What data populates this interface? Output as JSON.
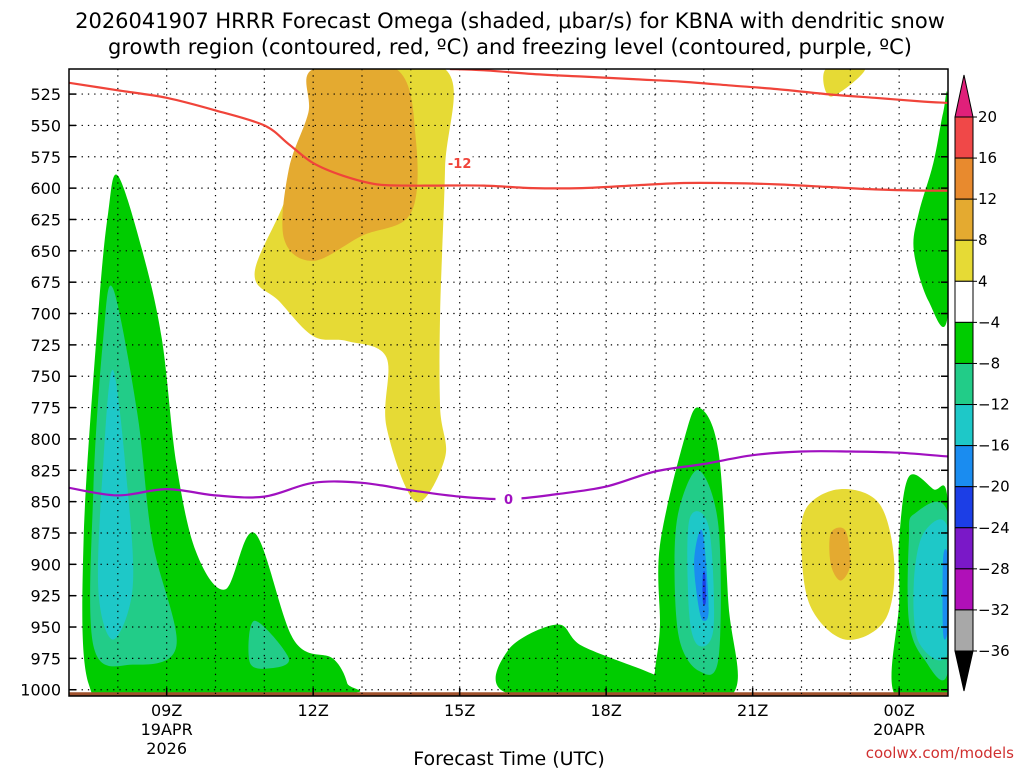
{
  "chart_data": {
    "type": "contour",
    "title_line1": "2026041907 HRRR Forecast Omega (shaded, μbar/s) for KBNA with dendritic snow",
    "title_line2": "growth region (contoured, red, ºC) and freezing level (contoured, purple, ºC)",
    "xlabel": "Forecast Time (UTC)",
    "ylabel": "",
    "credit": "coolwx.com/models",
    "x_range_hours": [
      7,
      25
    ],
    "y_range_hpa": [
      1005,
      505
    ],
    "y_ticks": [
      525,
      550,
      575,
      600,
      625,
      650,
      675,
      700,
      725,
      750,
      775,
      800,
      825,
      850,
      875,
      900,
      925,
      950,
      975,
      1000
    ],
    "x_ticks": [
      {
        "hour": 9,
        "label": "09Z",
        "sub": [
          "19APR",
          "2026"
        ]
      },
      {
        "hour": 12,
        "label": "12Z",
        "sub": []
      },
      {
        "hour": 15,
        "label": "15Z",
        "sub": []
      },
      {
        "hour": 18,
        "label": "18Z",
        "sub": []
      },
      {
        "hour": 21,
        "label": "21Z",
        "sub": []
      },
      {
        "hour": 24,
        "label": "00Z",
        "sub": [
          "20APR"
        ]
      }
    ],
    "grid": true,
    "colorbar": {
      "labels": [
        "20",
        "16",
        "12",
        "8",
        "4",
        "−4",
        "−8",
        "−12",
        "−16",
        "−20",
        "−24",
        "−28",
        "−32",
        "−36"
      ],
      "bands": [
        {
          "range": [
            16,
            20
          ],
          "color": "#f04848"
        },
        {
          "range": [
            12,
            16
          ],
          "color": "#e88a2e"
        },
        {
          "range": [
            8,
            12
          ],
          "color": "#e4aa30"
        },
        {
          "range": [
            4,
            8
          ],
          "color": "#e6da35"
        },
        {
          "range": [
            -4,
            4
          ],
          "color": "#ffffff"
        },
        {
          "range": [
            -8,
            -4
          ],
          "color": "#00cc00"
        },
        {
          "range": [
            -12,
            -8
          ],
          "color": "#22cc88"
        },
        {
          "range": [
            -16,
            -12
          ],
          "color": "#1ec8c8"
        },
        {
          "range": [
            -20,
            -16
          ],
          "color": "#1a8cf0"
        },
        {
          "range": [
            -24,
            -20
          ],
          "color": "#1c3ee6"
        },
        {
          "range": [
            -28,
            -24
          ],
          "color": "#7a18c8"
        },
        {
          "range": [
            -32,
            -28
          ],
          "color": "#b010b8"
        },
        {
          "range": [
            -36,
            -32
          ],
          "color": "#a8a8a8"
        }
      ],
      "top_arrow_color": "#e0207a",
      "bottom_arrow_color": "#000000"
    },
    "ground_color": "#a0522d",
    "omega_regions": [
      {
        "name": "sink-upper-yellow",
        "color": "#e6da35",
        "pts": [
          [
            10.8,
            668
          ],
          [
            11.4,
            612
          ],
          [
            11.9,
            555
          ],
          [
            12.3,
            505
          ],
          [
            14.7,
            505
          ],
          [
            14.7,
            585
          ],
          [
            14.6,
            700
          ],
          [
            14.6,
            775
          ],
          [
            14.7,
            815
          ],
          [
            14.1,
            850
          ],
          [
            13.5,
            790
          ],
          [
            13.5,
            735
          ],
          [
            12.7,
            722
          ],
          [
            12.0,
            718
          ],
          [
            11.3,
            690
          ]
        ]
      },
      {
        "name": "sink-upper-orange",
        "color": "#e4aa30",
        "pts": [
          [
            11.4,
            640
          ],
          [
            11.5,
            585
          ],
          [
            11.9,
            540
          ],
          [
            12.0,
            505
          ],
          [
            13.7,
            505
          ],
          [
            14.1,
            560
          ],
          [
            14.0,
            620
          ],
          [
            13.0,
            638
          ],
          [
            12.0,
            658
          ]
        ]
      },
      {
        "name": "sink-top-right-yellow",
        "color": "#e6da35",
        "pts": [
          [
            22.5,
            505
          ],
          [
            23.3,
            505
          ],
          [
            22.6,
            527
          ]
        ]
      },
      {
        "name": "sink-lower-yellow",
        "color": "#e6da35",
        "pts": [
          [
            22.1,
            855
          ],
          [
            22.8,
            840
          ],
          [
            23.6,
            852
          ],
          [
            23.9,
            900
          ],
          [
            23.7,
            945
          ],
          [
            22.9,
            960
          ],
          [
            22.2,
            935
          ],
          [
            22.0,
            890
          ]
        ]
      },
      {
        "name": "sink-lower-orange",
        "color": "#e4aa30",
        "pts": [
          [
            22.6,
            875
          ],
          [
            22.9,
            873
          ],
          [
            23.0,
            900
          ],
          [
            22.8,
            913
          ],
          [
            22.6,
            900
          ]
        ]
      },
      {
        "name": "rise-left-green",
        "color": "#00cc00",
        "pts": [
          [
            8.0,
            590
          ],
          [
            8.5,
            650
          ],
          [
            8.9,
            720
          ],
          [
            9.2,
            820
          ],
          [
            9.6,
            890
          ],
          [
            10.2,
            920
          ],
          [
            10.8,
            875
          ],
          [
            11.6,
            960
          ],
          [
            12.4,
            975
          ],
          [
            12.7,
            995
          ],
          [
            12.6,
            1003
          ],
          [
            8.3,
            1003
          ],
          [
            7.4,
            995
          ],
          [
            7.3,
            880
          ],
          [
            7.6,
            700
          ],
          [
            7.8,
            620
          ]
        ]
      },
      {
        "name": "rise-left-teal",
        "color": "#22cc88",
        "pts": [
          [
            7.9,
            680
          ],
          [
            8.4,
            780
          ],
          [
            8.7,
            880
          ],
          [
            9.2,
            965
          ],
          [
            8.3,
            980
          ],
          [
            7.5,
            965
          ],
          [
            7.5,
            840
          ],
          [
            7.7,
            720
          ]
        ]
      },
      {
        "name": "rise-left-cyan",
        "color": "#1ec8c8",
        "pts": [
          [
            7.9,
            745
          ],
          [
            8.2,
            840
          ],
          [
            8.3,
            920
          ],
          [
            7.9,
            960
          ],
          [
            7.6,
            920
          ],
          [
            7.7,
            820
          ]
        ]
      },
      {
        "name": "rise-left-small-teal",
        "color": "#22cc88",
        "pts": [
          [
            10.8,
            945
          ],
          [
            11.5,
            975
          ],
          [
            11.1,
            983
          ],
          [
            10.7,
            978
          ]
        ]
      },
      {
        "name": "rise-mid-green",
        "color": "#00cc00",
        "pts": [
          [
            16.0,
            968
          ],
          [
            17.0,
            948
          ],
          [
            17.5,
            965
          ],
          [
            18.8,
            985
          ],
          [
            19.0,
            990
          ],
          [
            19.0,
            1003
          ],
          [
            16.0,
            1003
          ]
        ]
      },
      {
        "name": "rise-mid2-green",
        "color": "#00cc00",
        "pts": [
          [
            19.1,
            885
          ],
          [
            19.6,
            800
          ],
          [
            19.9,
            775
          ],
          [
            20.3,
            810
          ],
          [
            20.5,
            930
          ],
          [
            20.6,
            1003
          ],
          [
            19.0,
            1003
          ],
          [
            19.0,
            985
          ],
          [
            19.1,
            950
          ]
        ]
      },
      {
        "name": "rise-mid2-teal",
        "color": "#22cc88",
        "pts": [
          [
            19.5,
            855
          ],
          [
            19.9,
            825
          ],
          [
            20.3,
            870
          ],
          [
            20.3,
            975
          ],
          [
            19.9,
            985
          ],
          [
            19.5,
            960
          ],
          [
            19.4,
            900
          ]
        ]
      },
      {
        "name": "rise-mid2-cyan",
        "color": "#1ec8c8",
        "pts": [
          [
            19.7,
            865
          ],
          [
            20.1,
            870
          ],
          [
            20.2,
            950
          ],
          [
            19.9,
            965
          ],
          [
            19.7,
            940
          ]
        ]
      },
      {
        "name": "rise-mid2-blue",
        "color": "#1a8cf0",
        "pts": [
          [
            19.9,
            875
          ],
          [
            20.0,
            880
          ],
          [
            20.1,
            935
          ],
          [
            20.0,
            945
          ],
          [
            19.9,
            935
          ],
          [
            19.8,
            900
          ]
        ]
      },
      {
        "name": "rise-mid2-deepblue",
        "color": "#1c3ee6",
        "pts": [
          [
            19.98,
            908
          ],
          [
            20.03,
            908
          ],
          [
            20.04,
            930
          ],
          [
            19.98,
            930
          ]
        ]
      },
      {
        "name": "rise-right-green",
        "color": "#00cc00",
        "pts": [
          [
            24.2,
            830
          ],
          [
            24.7,
            840
          ],
          [
            25.0,
            852
          ],
          [
            25.0,
            1003
          ],
          [
            23.9,
            1003
          ],
          [
            24.0,
            930
          ],
          [
            24.0,
            880
          ]
        ]
      },
      {
        "name": "rise-right-teal",
        "color": "#22cc88",
        "pts": [
          [
            24.3,
            860
          ],
          [
            25.0,
            860
          ],
          [
            25.0,
            985
          ],
          [
            24.5,
            975
          ],
          [
            24.2,
            945
          ],
          [
            24.2,
            880
          ]
        ]
      },
      {
        "name": "rise-right-cyan",
        "color": "#1ec8c8",
        "pts": [
          [
            24.5,
            875
          ],
          [
            25.0,
            872
          ],
          [
            25.0,
            970
          ],
          [
            24.4,
            962
          ],
          [
            24.3,
            915
          ]
        ]
      },
      {
        "name": "rise-right-blue",
        "color": "#1a8cf0",
        "pts": [
          [
            24.9,
            895
          ],
          [
            25.0,
            895
          ],
          [
            25.0,
            950
          ],
          [
            24.9,
            955
          ]
        ]
      },
      {
        "name": "rise-top-right-green",
        "color": "#00cc00",
        "pts": [
          [
            25.0,
            535
          ],
          [
            24.9,
            540
          ],
          [
            24.7,
            580
          ],
          [
            24.4,
            620
          ],
          [
            24.3,
            650
          ],
          [
            24.6,
            690
          ],
          [
            25.0,
            700
          ]
        ]
      }
    ],
    "isotherm_minus12": {
      "label": "-12",
      "label_at": [
        15.0,
        580
      ],
      "color": "#f0443a",
      "pts": [
        [
          7.0,
          516
        ],
        [
          8.0,
          522
        ],
        [
          9.0,
          528
        ],
        [
          10.0,
          538
        ],
        [
          11.0,
          550
        ],
        [
          11.5,
          565
        ],
        [
          12.0,
          580
        ],
        [
          12.6,
          590
        ],
        [
          13.3,
          597
        ],
        [
          14.0,
          598
        ],
        [
          14.5,
          598
        ],
        [
          15.5,
          598
        ],
        [
          16.5,
          600
        ],
        [
          17.5,
          600
        ],
        [
          18.5,
          598
        ],
        [
          19.5,
          596
        ],
        [
          20.5,
          596
        ],
        [
          21.5,
          597
        ],
        [
          22.5,
          599
        ],
        [
          23.5,
          601
        ],
        [
          24.5,
          602
        ],
        [
          25.0,
          602
        ]
      ]
    },
    "isotherm_minus12_upper": {
      "color": "#f0443a",
      "pts": [
        [
          14.8,
          505
        ],
        [
          15.5,
          506
        ],
        [
          16.5,
          509
        ],
        [
          17.5,
          511
        ],
        [
          18.5,
          513
        ],
        [
          19.5,
          515
        ],
        [
          20.5,
          518
        ],
        [
          21.5,
          521
        ],
        [
          22.5,
          525
        ],
        [
          23.5,
          528
        ],
        [
          24.5,
          531
        ],
        [
          25.0,
          532
        ]
      ]
    },
    "freezing_level": {
      "label": "0",
      "label_at": [
        16.0,
        848
      ],
      "color": "#a010c0",
      "pts": [
        [
          7.0,
          839
        ],
        [
          8.0,
          845
        ],
        [
          9.0,
          840
        ],
        [
          10.0,
          845
        ],
        [
          11.0,
          846
        ],
        [
          12.0,
          835
        ],
        [
          13.0,
          835
        ],
        [
          14.0,
          841
        ],
        [
          15.0,
          846
        ],
        [
          16.0,
          848
        ],
        [
          17.0,
          844
        ],
        [
          18.0,
          838
        ],
        [
          19.0,
          826
        ],
        [
          20.0,
          820
        ],
        [
          21.0,
          813
        ],
        [
          22.0,
          810
        ],
        [
          23.0,
          810
        ],
        [
          24.0,
          811
        ],
        [
          25.0,
          814
        ]
      ]
    }
  }
}
